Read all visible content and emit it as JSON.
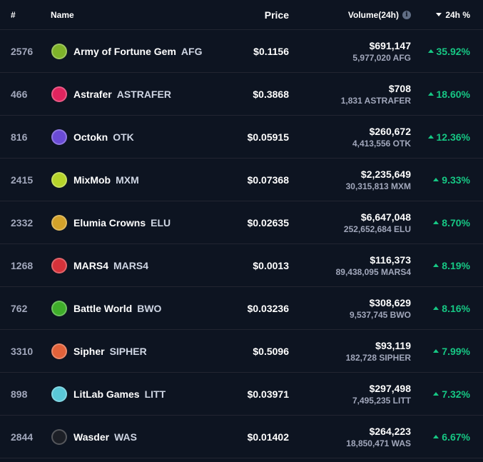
{
  "header": {
    "rank": "#",
    "name": "Name",
    "price": "Price",
    "volume": "Volume(24h)",
    "change": "24h %"
  },
  "colors": {
    "background": "#0d1421",
    "positive": "#16c784",
    "muted": "#a1a7bb"
  },
  "rows": [
    {
      "rank": "2576",
      "name": "Army of Fortune Gem",
      "symbol": "AFG",
      "price": "$0.1156",
      "volume_usd": "$691,147",
      "volume_token": "5,977,020 AFG",
      "change": "35.92%",
      "icon": "afg-icon",
      "icon_color": "#7fb32a"
    },
    {
      "rank": "466",
      "name": "Astrafer",
      "symbol": "ASTRAFER",
      "price": "$0.3868",
      "volume_usd": "$708",
      "volume_token": "1,831 ASTRAFER",
      "change": "18.60%",
      "icon": "astrafer-icon",
      "icon_color": "#e0245e"
    },
    {
      "rank": "816",
      "name": "Octokn",
      "symbol": "OTK",
      "price": "$0.05915",
      "volume_usd": "$260,672",
      "volume_token": "4,413,556 OTK",
      "change": "12.36%",
      "icon": "octokn-icon",
      "icon_color": "#6a4bd6"
    },
    {
      "rank": "2415",
      "name": "MixMob",
      "symbol": "MXM",
      "price": "$0.07368",
      "volume_usd": "$2,235,649",
      "volume_token": "30,315,813 MXM",
      "change": "9.33%",
      "icon": "mixmob-icon",
      "icon_color": "#b6d42a"
    },
    {
      "rank": "2332",
      "name": "Elumia Crowns",
      "symbol": "ELU",
      "price": "$0.02635",
      "volume_usd": "$6,647,048",
      "volume_token": "252,652,684 ELU",
      "change": "8.70%",
      "icon": "elumia-icon",
      "icon_color": "#d4a22a"
    },
    {
      "rank": "1268",
      "name": "MARS4",
      "symbol": "MARS4",
      "price": "$0.0013",
      "volume_usd": "$116,373",
      "volume_token": "89,438,095 MARS4",
      "change": "8.19%",
      "icon": "mars4-icon",
      "icon_color": "#d6323a"
    },
    {
      "rank": "762",
      "name": "Battle World",
      "symbol": "BWO",
      "price": "$0.03236",
      "volume_usd": "$308,629",
      "volume_token": "9,537,745 BWO",
      "change": "8.16%",
      "icon": "battle-world-icon",
      "icon_color": "#3fae2a"
    },
    {
      "rank": "3310",
      "name": "Sipher",
      "symbol": "SIPHER",
      "price": "$0.5096",
      "volume_usd": "$93,119",
      "volume_token": "182,728 SIPHER",
      "change": "7.99%",
      "icon": "sipher-icon",
      "icon_color": "#e2623a"
    },
    {
      "rank": "898",
      "name": "LitLab Games",
      "symbol": "LITT",
      "price": "$0.03971",
      "volume_usd": "$297,498",
      "volume_token": "7,495,235 LITT",
      "change": "7.32%",
      "icon": "litlab-icon",
      "icon_color": "#5ac8d8"
    },
    {
      "rank": "2844",
      "name": "Wasder",
      "symbol": "WAS",
      "price": "$0.01402",
      "volume_usd": "$264,223",
      "volume_token": "18,850,471 WAS",
      "change": "6.67%",
      "icon": "wasder-icon",
      "icon_color": "#1c1f26"
    }
  ]
}
